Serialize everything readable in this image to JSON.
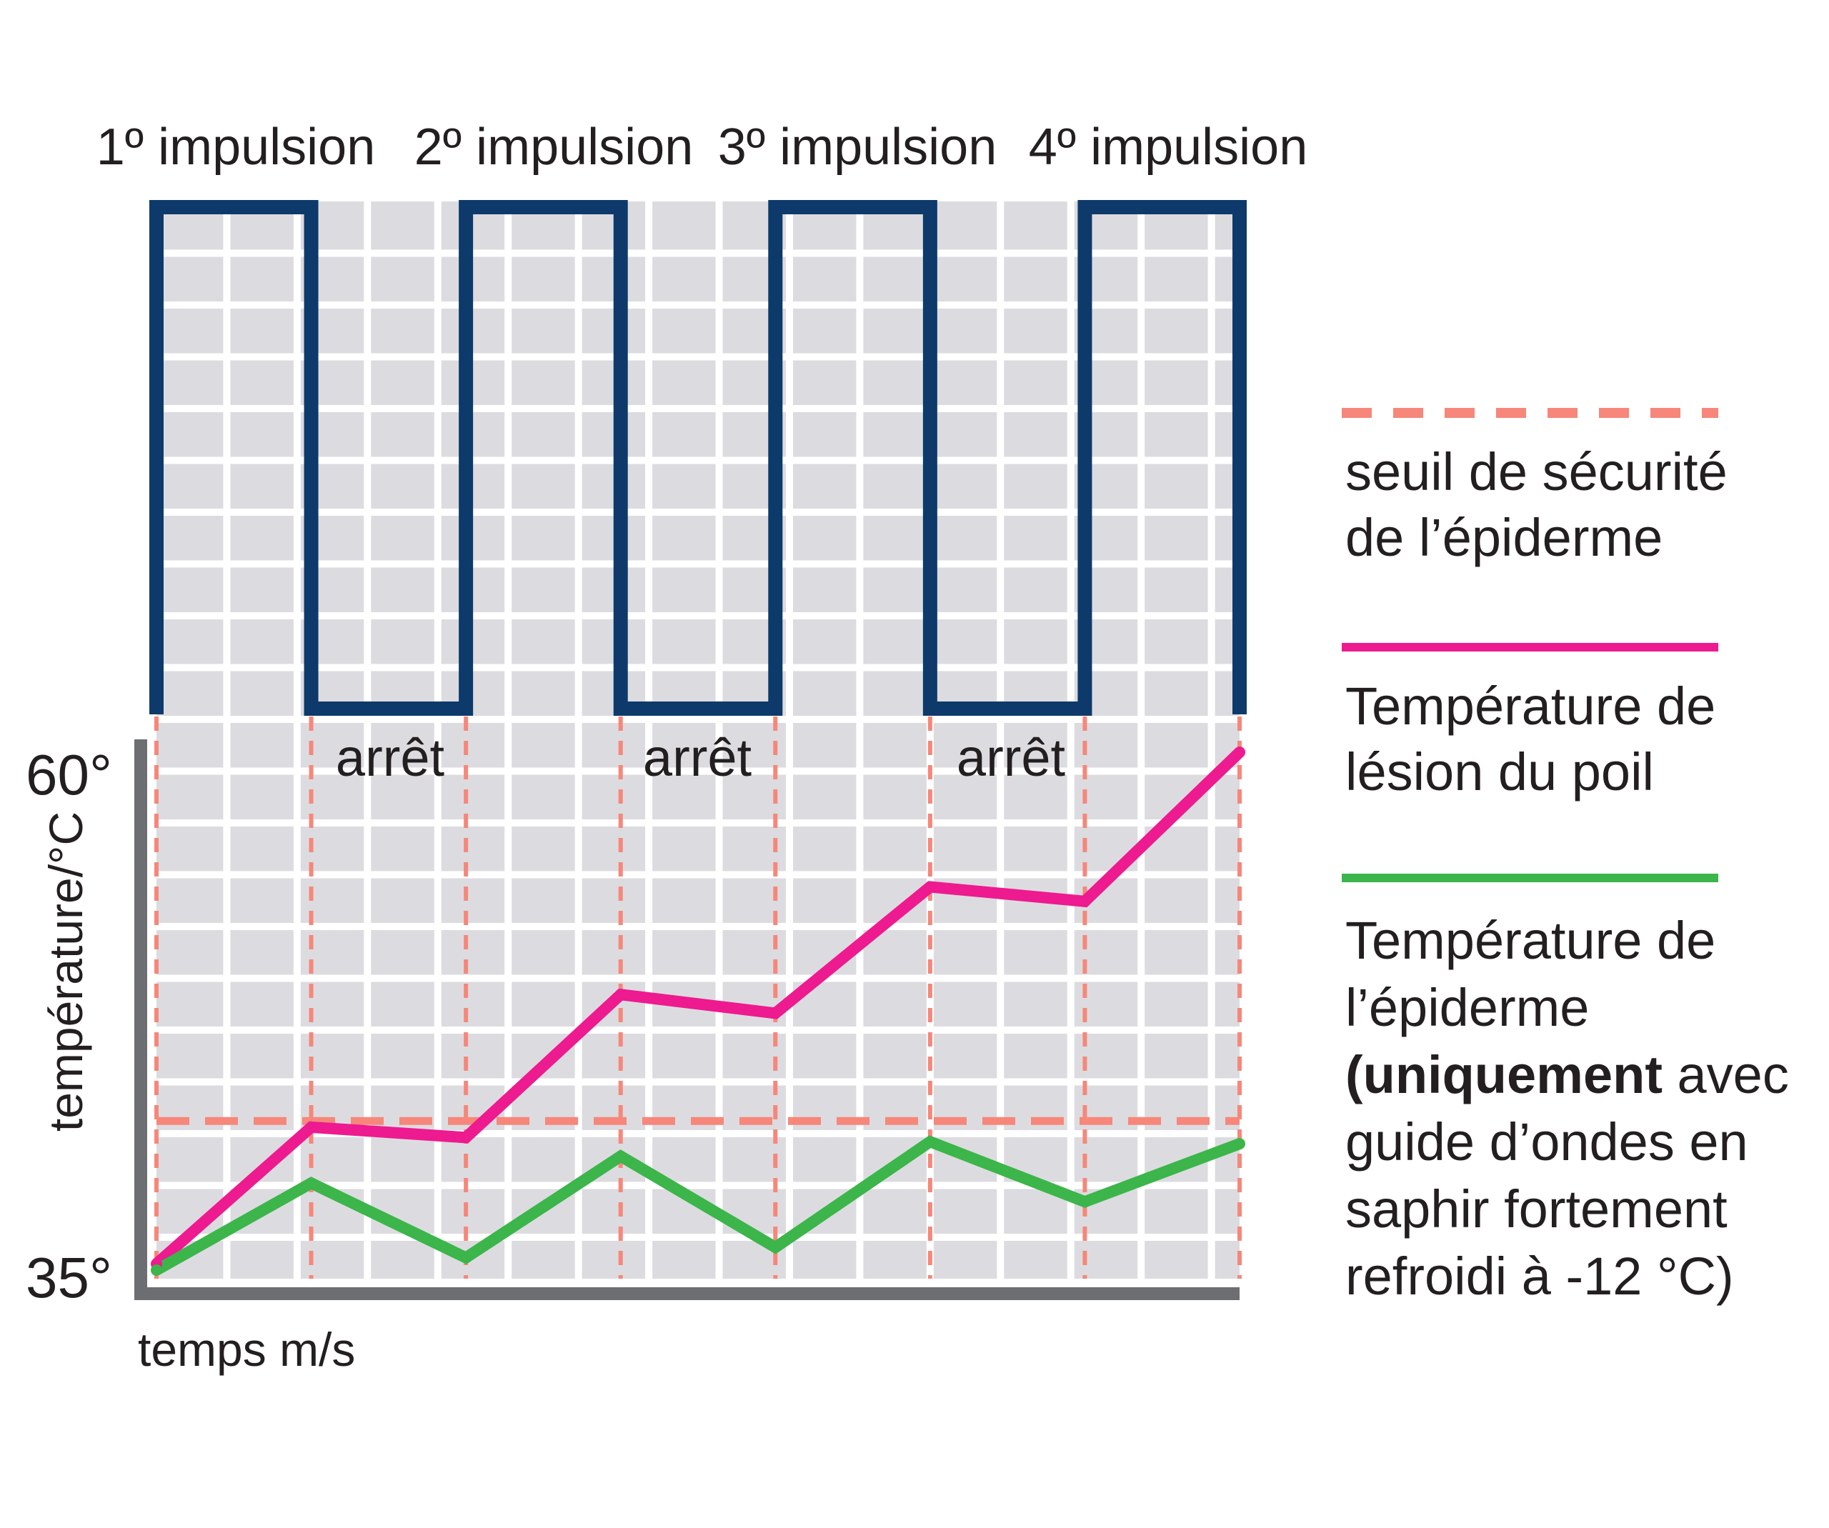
{
  "chart_data": {
    "type": "line",
    "title": "",
    "xlabel": "temps m/s",
    "ylabel": "température/°C",
    "y_tick_labels": [
      "60°",
      "35°"
    ],
    "ylim": [
      35,
      60
    ],
    "x": [
      0,
      1,
      2,
      3,
      4,
      5,
      6,
      7
    ],
    "pulses": {
      "labels": [
        "1º impulsion",
        "2º impulsion",
        "3º impulsion",
        "4º impulsion"
      ],
      "off_label": "arrêt",
      "off_labels": [
        "arrêt",
        "arrêt",
        "arrêt"
      ],
      "signal": [
        1,
        0,
        1,
        0,
        1,
        0,
        1
      ],
      "color": "#0d3a6b"
    },
    "series": [
      {
        "name": "Température de lésion du poil",
        "color": "#ee1a8f",
        "values": [
          35.3,
          41.9,
          41.4,
          48.3,
          47.4,
          53.5,
          52.8,
          60.0
        ]
      },
      {
        "name": "Température de l'épiderme (uniquement avec guide d'ondes en saphir fortement refroidi à -12 °C)",
        "color": "#3cb54a",
        "values": [
          35.0,
          39.2,
          35.6,
          40.5,
          36.1,
          41.2,
          38.3,
          41.1
        ]
      }
    ],
    "threshold": {
      "name": "seuil de sécurité de l'épiderme",
      "value": 42.2,
      "color": "#f6877a",
      "style": "dashed"
    },
    "legend": {
      "position": "right",
      "entries": [
        {
          "lines": [
            "seuil de sécurité",
            "de l’épiderme"
          ]
        },
        {
          "lines": [
            "Température de",
            "lésion du poil"
          ]
        },
        {
          "lines": [
            "Température de",
            "l’épiderme",
            "(uniquement avec",
            "guide d’ondes en",
            "saphir fortement",
            "refroidi à -12 °C)"
          ]
        }
      ]
    },
    "colors": {
      "grid_bg": "#dcdce0",
      "grid_line": "#ffffff",
      "axis": "#6d6e71"
    }
  }
}
